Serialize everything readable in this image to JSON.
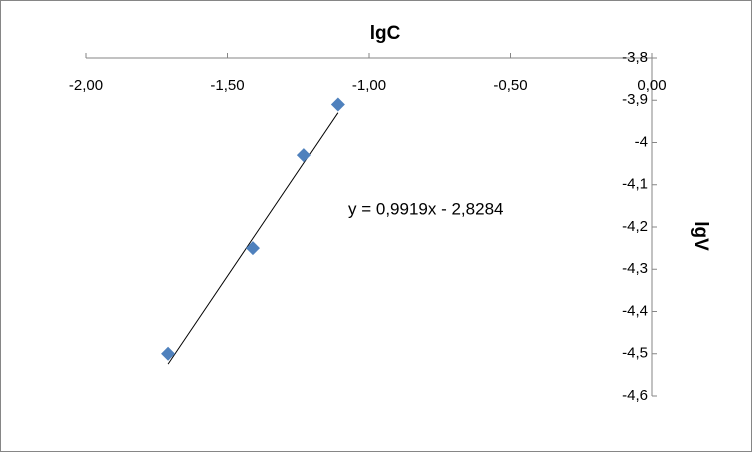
{
  "chart_data": {
    "type": "scatter",
    "x_label": "lgC",
    "y_label": "lgV",
    "series": [
      {
        "name": "lgV",
        "color": "#4f81bd",
        "x": [
          -1.71,
          -1.41,
          -1.23,
          -1.11
        ],
        "values": [
          -4.5,
          -4.25,
          -4.03,
          -3.91
        ]
      }
    ],
    "xlim": [
      -2,
      0
    ],
    "xticks": [
      {
        "value": -2,
        "label": "-2,00"
      },
      {
        "value": -1.5,
        "label": "-1,50"
      },
      {
        "value": -1,
        "label": "-1,00"
      },
      {
        "value": -0.5,
        "label": "-0,50"
      },
      {
        "value": 0,
        "label": "0,00"
      }
    ],
    "ylim": [
      -4.6,
      -3.8
    ],
    "yticks": [
      {
        "value": -3.8,
        "label": "-3,8"
      },
      {
        "value": -3.9,
        "label": "-3,9"
      },
      -4,
      {
        "value": -4.1,
        "label": "-4,1"
      },
      {
        "value": -4.2,
        "label": "-4,2"
      },
      {
        "value": -4.3,
        "label": "-4,3"
      },
      {
        "value": -4.4,
        "label": "-4,4"
      },
      {
        "value": -4.5,
        "label": "-4,5"
      },
      {
        "value": -4.6,
        "label": "-4,6"
      }
    ],
    "trendline": {
      "slope": 0.9919,
      "intercept": -2.8284,
      "label": "y = 0,9919x - 2,8284",
      "color": "#000000"
    },
    "grid": false
  }
}
